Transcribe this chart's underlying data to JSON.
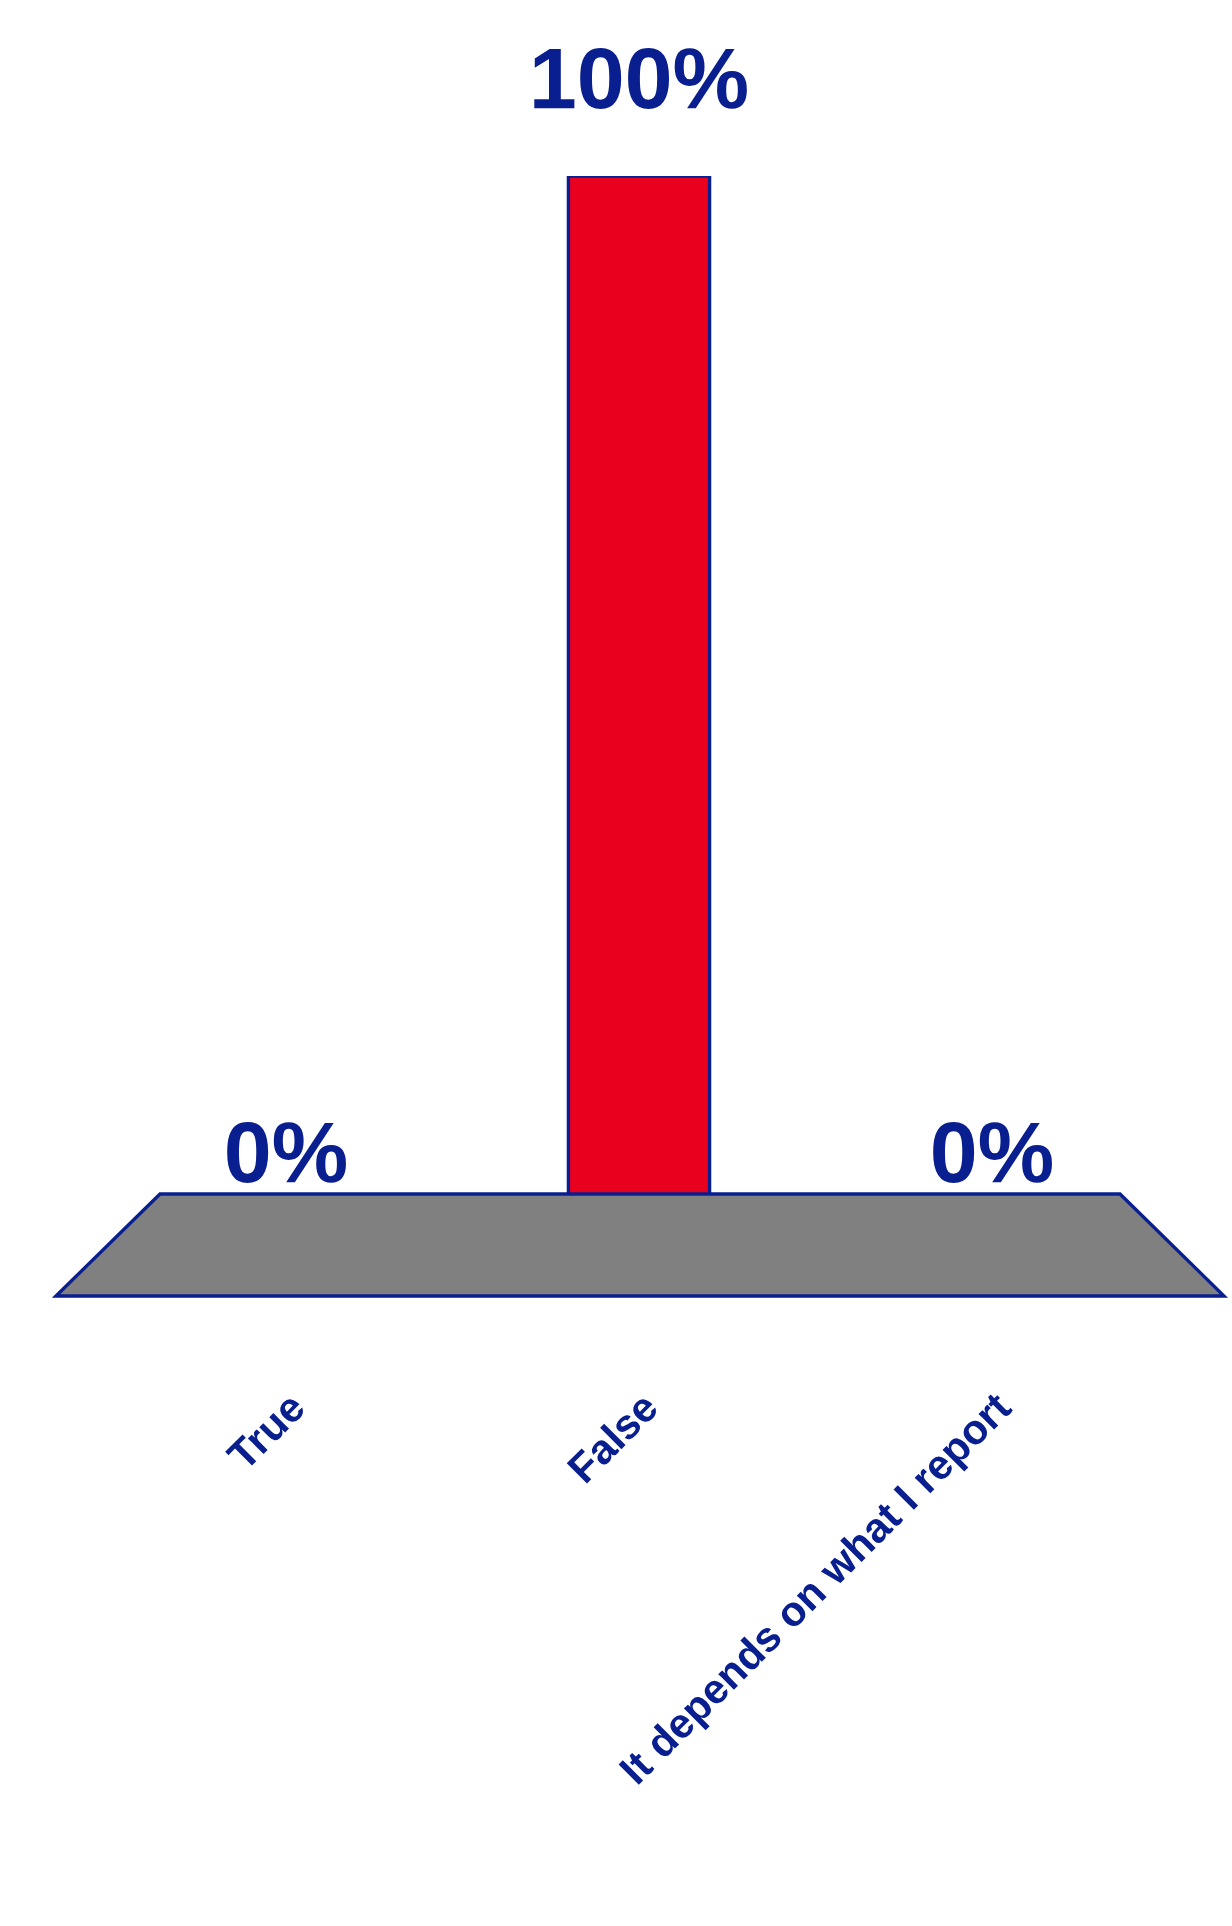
{
  "chart_data": {
    "type": "bar",
    "categories": [
      "True",
      "False",
      "It depends on what I report"
    ],
    "values": [
      0,
      100,
      0
    ],
    "colors": [
      "#b0185a",
      "#e8001e",
      "#c8c8c8"
    ],
    "value_labels": [
      "0%",
      "100%",
      "0%"
    ],
    "tick_labels": "x"
  }
}
